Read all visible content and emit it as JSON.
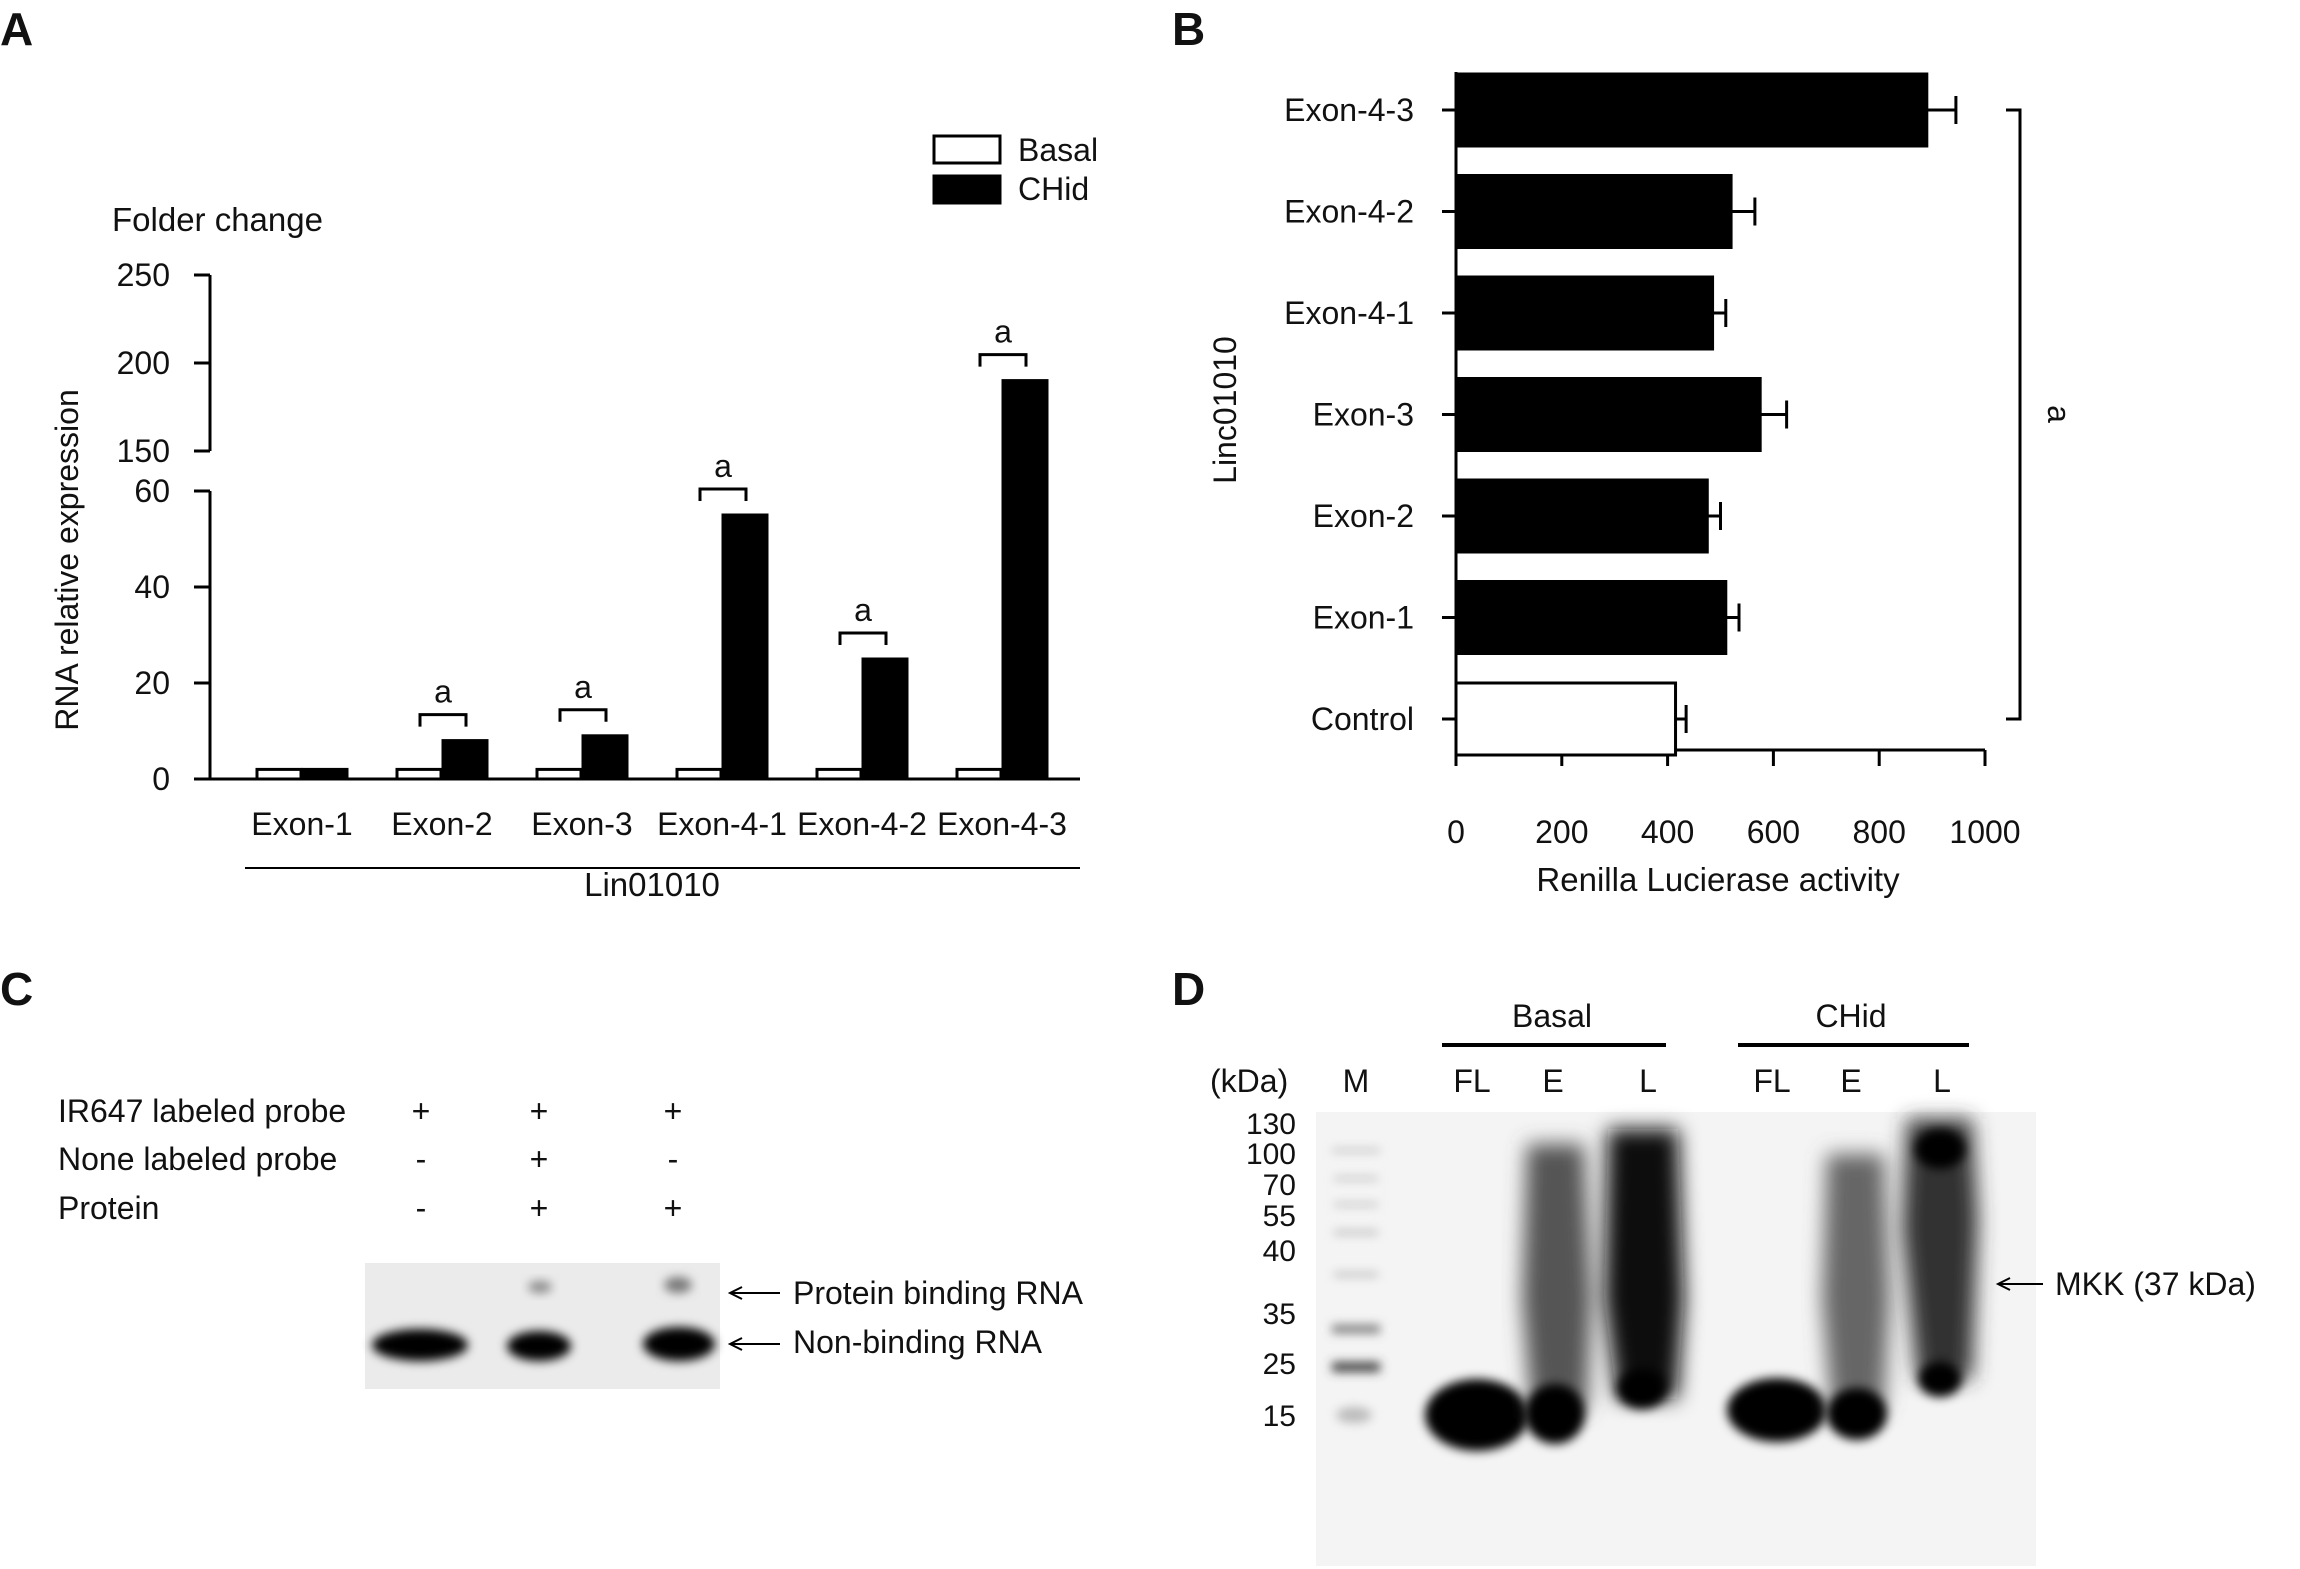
{
  "panels": {
    "A": {
      "letter": "A"
    },
    "B": {
      "letter": "B"
    },
    "C": {
      "letter": "C"
    },
    "D": {
      "letter": "D"
    }
  },
  "chart_data": [
    {
      "type": "bar",
      "panel": "A",
      "ylabel": "RNA relative expression",
      "ylabel_upper": "Folder change",
      "xlabel": "Lin01010",
      "categories": [
        "Exon-1",
        "Exon-2",
        "Exon-3",
        "Exon-4-1",
        "Exon-4-2",
        "Exon-4-3"
      ],
      "series": [
        {
          "name": "Basal",
          "values": [
            2,
            2,
            2,
            2,
            2,
            2
          ],
          "color": "#ffffff"
        },
        {
          "name": "CHid",
          "values": [
            2,
            8,
            9,
            55,
            25,
            190
          ],
          "color": "#000000"
        }
      ],
      "y_axis_break": {
        "lower": [
          0,
          60
        ],
        "upper": [
          150,
          250
        ]
      },
      "yticks_lower": [
        0,
        20,
        40,
        60
      ],
      "yticks_upper": [
        150,
        200,
        250
      ],
      "significance": [
        "",
        "a",
        "a",
        "a",
        "a",
        "a"
      ],
      "legend_position": "top-right"
    },
    {
      "type": "bar",
      "orientation": "horizontal",
      "panel": "B",
      "ylabel": "Linc01010",
      "xlabel": "Renilla Lucierase activity",
      "categories": [
        "Exon-4-3",
        "Exon-4-2",
        "Exon-4-1",
        "Exon-3",
        "Exon-2",
        "Exon-1",
        "Control"
      ],
      "values": [
        890,
        520,
        485,
        575,
        475,
        510,
        415
      ],
      "errors": [
        55,
        45,
        25,
        50,
        25,
        25,
        20
      ],
      "colors": [
        "#000000",
        "#000000",
        "#000000",
        "#000000",
        "#000000",
        "#000000",
        "#ffffff"
      ],
      "xlim": [
        0,
        1000
      ],
      "xticks": [
        0,
        200,
        400,
        600,
        800,
        1000
      ],
      "significance": "a"
    }
  ],
  "panelC": {
    "rows": [
      {
        "label": "IR647 labeled probe",
        "marks": [
          "+",
          "+",
          "+"
        ]
      },
      {
        "label": "None labeled probe",
        "marks": [
          "-",
          "+",
          "-"
        ]
      },
      {
        "label": "Protein",
        "marks": [
          "-",
          "+",
          "+"
        ]
      }
    ],
    "arrows": [
      "Protein binding RNA",
      "Non-binding RNA"
    ]
  },
  "panelD": {
    "group_basal": "Basal",
    "group_chid": "CHid",
    "kda_label": "(kDa)",
    "lanes": [
      "M",
      "FL",
      "E",
      "L",
      "FL",
      "E",
      "L"
    ],
    "markers": [
      "130",
      "100",
      "70",
      "55",
      "40",
      "35",
      "25",
      "15"
    ],
    "arrow": "MKK (37 kDa)"
  }
}
